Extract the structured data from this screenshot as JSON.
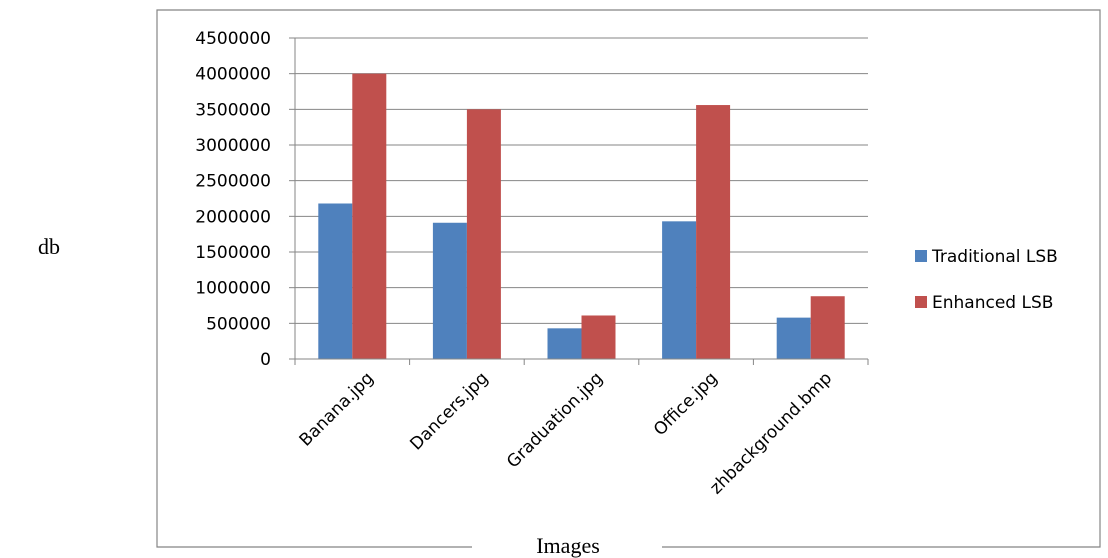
{
  "chart_data": {
    "type": "bar",
    "xlabel": "Images",
    "ylabel": "db",
    "categories": [
      "Banana.jpg",
      "Dancers.jpg",
      "Graduation.jpg",
      "Office.jpg",
      "zhbackground.bmp"
    ],
    "series": [
      {
        "name": "Traditional LSB",
        "color": "#4F81BD",
        "values": [
          2180000,
          1910000,
          430000,
          1930000,
          580000
        ]
      },
      {
        "name": "Enhanced LSB",
        "color": "#C0504D",
        "values": [
          4000000,
          3500000,
          610000,
          3560000,
          880000
        ]
      }
    ],
    "ylim": [
      0,
      4500000
    ],
    "yticks": [
      0,
      500000,
      1000000,
      1500000,
      2000000,
      2500000,
      3000000,
      3500000,
      4000000,
      4500000
    ],
    "grid": true,
    "legend_position": "right"
  }
}
